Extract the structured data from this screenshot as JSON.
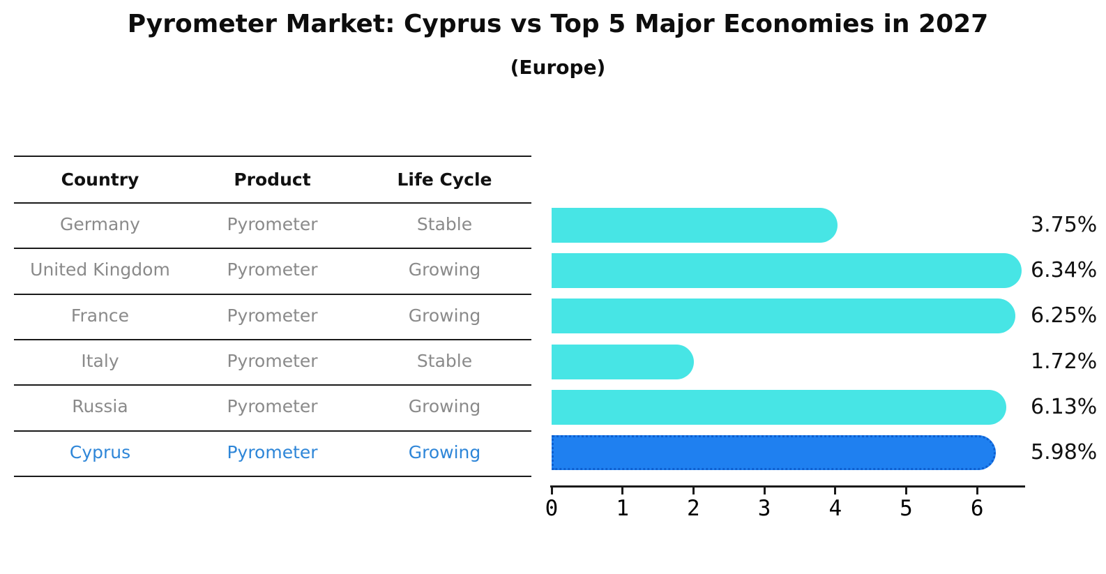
{
  "title": "Pyrometer Market: Cyprus vs Top 5 Major Economies in 2027",
  "subtitle": "(Europe)",
  "table": {
    "headers": [
      "Country",
      "Product",
      "Life Cycle"
    ],
    "rows": [
      {
        "country": "Germany",
        "product": "Pyrometer",
        "life_cycle": "Stable",
        "highlight": false
      },
      {
        "country": "United Kingdom",
        "product": "Pyrometer",
        "life_cycle": "Growing",
        "highlight": false
      },
      {
        "country": "France",
        "product": "Pyrometer",
        "life_cycle": "Growing",
        "highlight": false
      },
      {
        "country": "Italy",
        "product": "Pyrometer",
        "life_cycle": "Stable",
        "highlight": false
      },
      {
        "country": "Russia",
        "product": "Pyrometer",
        "life_cycle": "Growing",
        "highlight": true
      },
      {
        "country": "Cyprus",
        "product": "Pyrometer",
        "life_cycle": "Growing",
        "highlight": true
      }
    ]
  },
  "chart_data": {
    "type": "bar",
    "orientation": "horizontal",
    "title": "Pyrometer Market: Cyprus vs Top 5 Major Economies in 2027",
    "subtitle": "(Europe)",
    "categories": [
      "Germany",
      "United Kingdom",
      "France",
      "Italy",
      "Russia",
      "Cyprus"
    ],
    "values": [
      3.75,
      6.34,
      6.25,
      1.72,
      6.13,
      5.98
    ],
    "value_labels": [
      "3.75%",
      "6.34%",
      "6.25%",
      "1.72%",
      "6.13%",
      "5.98%"
    ],
    "x_ticks": [
      "0",
      "1",
      "2",
      "3",
      "4",
      "5",
      "6"
    ],
    "xlim": [
      0,
      6.7
    ],
    "grid": false,
    "legend": "none",
    "highlight_index": 5
  },
  "colors": {
    "bar": "#47e5e5",
    "highlight_bar": "#1f80f0",
    "highlight_border": "#0d5fd0",
    "highlight_text": "#2e86d8",
    "row_text": "#8a8a8a",
    "line": "#1a1a1a"
  }
}
